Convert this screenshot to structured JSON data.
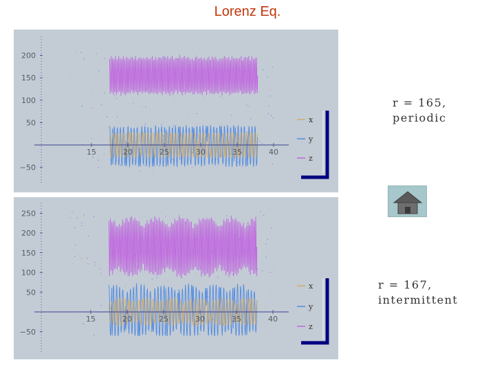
{
  "page": {
    "title": "Lorenz Eq."
  },
  "panels": [
    {
      "caption_line1": "r = 165,",
      "caption_line2": "periodic",
      "legend": [
        "x",
        "y",
        "z"
      ]
    },
    {
      "caption_line1": "r = 167,",
      "caption_line2": "intermittent",
      "legend": [
        "x",
        "y",
        "z"
      ]
    }
  ],
  "home_button": {
    "icon": "home-icon"
  },
  "colors": {
    "panel_bg": "#c3ccd5",
    "title": "#c0360c",
    "x_series": "#d4a861",
    "y_series": "#4a86e0",
    "z_series": "#c05ce0",
    "axis": "#3a3f8c",
    "bracket": "#000080"
  },
  "chart_data": [
    {
      "type": "line",
      "title": "",
      "xlabel": "",
      "ylabel": "",
      "xlim": [
        10,
        40
      ],
      "ylim": [
        -60,
        210
      ],
      "x_ticks": [
        15,
        20,
        25,
        30,
        35,
        40
      ],
      "y_ticks": [
        -50,
        50,
        100,
        150,
        200
      ],
      "t_start": 17.5,
      "t_end": 37.8,
      "regime": "periodic",
      "series": [
        {
          "name": "x",
          "color": "#d4a861",
          "approx_range": [
            -30,
            30
          ]
        },
        {
          "name": "y",
          "color": "#4a86e0",
          "approx_range": [
            -50,
            45
          ]
        },
        {
          "name": "z",
          "color": "#c05ce0",
          "approx_range": [
            110,
            200
          ]
        }
      ]
    },
    {
      "type": "line",
      "title": "",
      "xlabel": "",
      "ylabel": "",
      "xlim": [
        10,
        40
      ],
      "ylim": [
        -60,
        260
      ],
      "x_ticks": [
        15,
        20,
        25,
        30,
        35,
        40
      ],
      "y_ticks": [
        -50,
        50,
        100,
        150,
        200,
        250
      ],
      "t_start": 17.5,
      "t_end": 37.8,
      "regime": "intermittent",
      "series": [
        {
          "name": "x",
          "color": "#d4a861",
          "approx_range": [
            -30,
            30
          ]
        },
        {
          "name": "y",
          "color": "#4a86e0",
          "approx_range": [
            -55,
            60
          ]
        },
        {
          "name": "z",
          "color": "#c05ce0",
          "approx_range": [
            100,
            230
          ]
        }
      ]
    }
  ]
}
